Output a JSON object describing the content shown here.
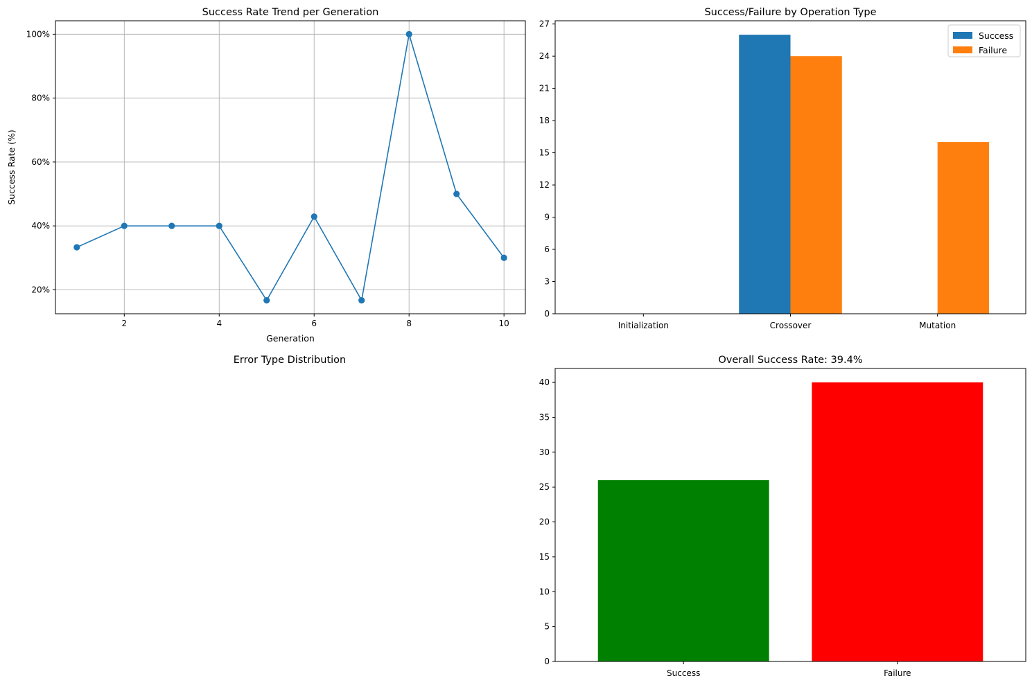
{
  "chart_data": [
    {
      "id": "trend",
      "type": "line",
      "title": "Success Rate Trend per Generation",
      "xlabel": "Generation",
      "ylabel": "Success Rate (%)",
      "x": [
        1,
        2,
        3,
        4,
        5,
        6,
        7,
        8,
        9,
        10
      ],
      "series": [
        {
          "values": [
            33.3,
            40,
            40,
            40,
            16.7,
            42.9,
            16.7,
            100,
            50,
            30
          ],
          "color": "#1f77b4"
        }
      ],
      "xlim": [
        0.55,
        10.45
      ],
      "ylim": [
        12.5,
        104.2
      ],
      "xticks": [
        2,
        4,
        6,
        8,
        10
      ],
      "xtick_labels": [
        "2",
        "4",
        "6",
        "8",
        "10"
      ],
      "yticks": [
        20,
        40,
        60,
        80,
        100
      ],
      "ytick_labels": [
        "20%",
        "40%",
        "60%",
        "80%",
        "100%"
      ],
      "grid": true
    },
    {
      "id": "ops",
      "type": "bar",
      "title": "Success/Failure by Operation Type",
      "categories": [
        "Initialization",
        "Crossover",
        "Mutation"
      ],
      "series": [
        {
          "name": "Success",
          "values": [
            0,
            26,
            0
          ],
          "color": "#1f77b4"
        },
        {
          "name": "Failure",
          "values": [
            0,
            24,
            16
          ],
          "color": "#ff7f0e"
        }
      ],
      "ylim": [
        0,
        27.3
      ],
      "yticks": [
        0,
        3,
        6,
        9,
        12,
        15,
        18,
        21,
        24,
        27
      ],
      "ytick_labels": [
        "0",
        "3",
        "6",
        "9",
        "12",
        "15",
        "18",
        "21",
        "24",
        "27"
      ],
      "legend": "top-right",
      "grid": false
    },
    {
      "id": "errors",
      "type": "pie",
      "title": "Error Type Distribution",
      "values": [],
      "labels": []
    },
    {
      "id": "overall",
      "type": "bar",
      "title": "Overall Success Rate: 39.4%",
      "categories": [
        "Success",
        "Failure"
      ],
      "values": [
        26,
        40
      ],
      "colors": [
        "#008000",
        "#ff0000"
      ],
      "ylim": [
        0,
        42
      ],
      "yticks": [
        0,
        5,
        10,
        15,
        20,
        25,
        30,
        35,
        40
      ],
      "ytick_labels": [
        "0",
        "5",
        "10",
        "15",
        "20",
        "25",
        "30",
        "35",
        "40"
      ],
      "grid": false
    }
  ]
}
